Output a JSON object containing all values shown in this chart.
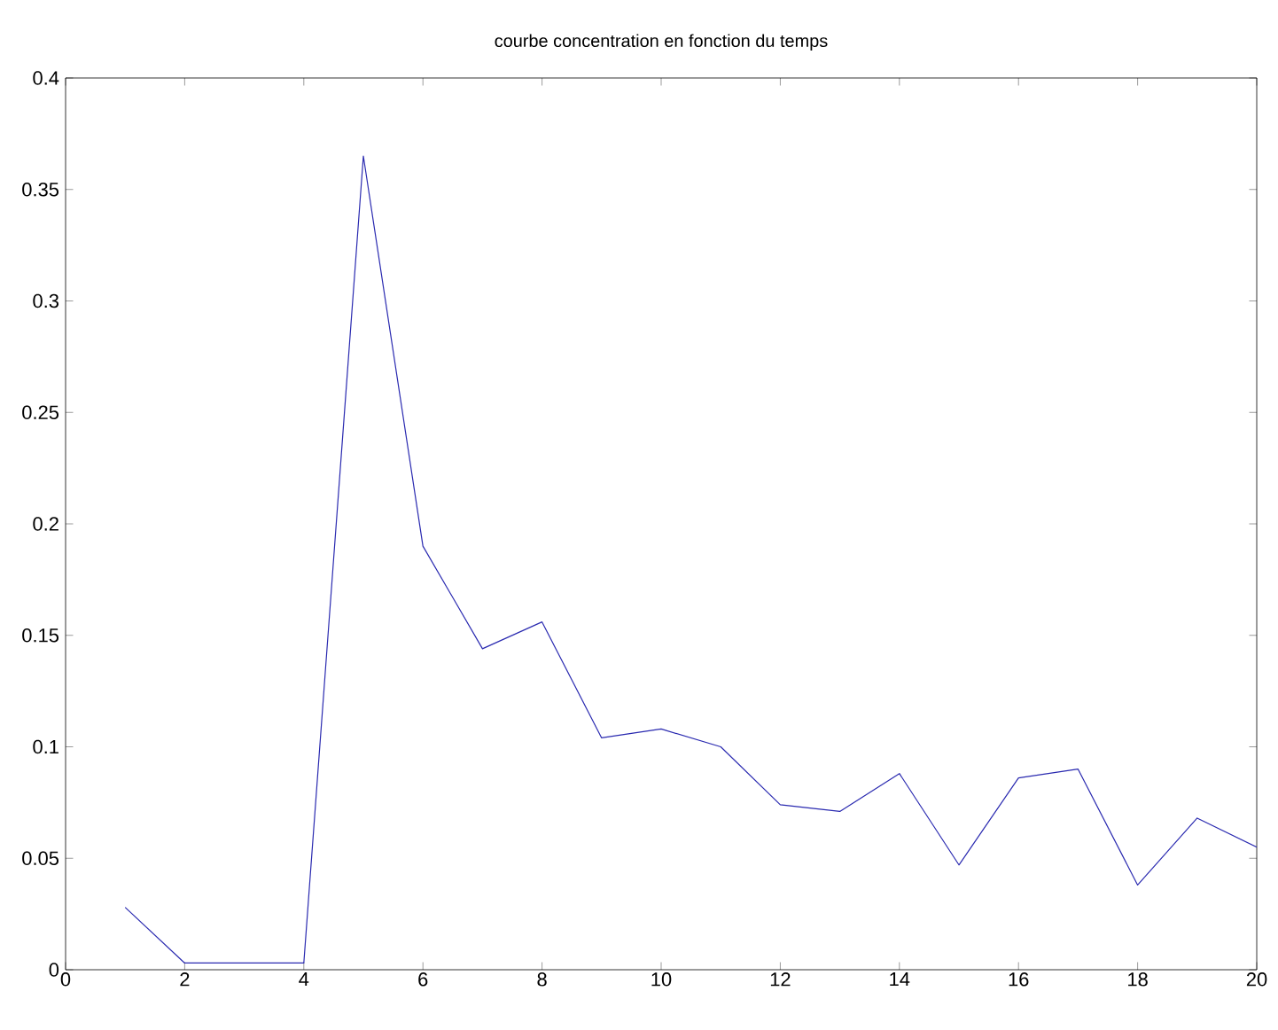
{
  "chart_data": {
    "type": "line",
    "title": "courbe concentration en fonction du temps",
    "x": [
      1,
      2,
      3,
      4,
      5,
      6,
      7,
      8,
      9,
      10,
      11,
      12,
      13,
      14,
      15,
      16,
      17,
      18,
      19,
      20
    ],
    "series": [
      {
        "color": "#2a2ab0",
        "values": [
          0.028,
          0.003,
          0.003,
          0.003,
          0.365,
          0.19,
          0.144,
          0.156,
          0.104,
          0.108,
          0.1,
          0.074,
          0.071,
          0.088,
          0.047,
          0.086,
          0.09,
          0.038,
          0.068,
          0.055
        ]
      }
    ],
    "xlim": [
      0,
      20
    ],
    "xticks": [
      0,
      2,
      4,
      6,
      8,
      10,
      12,
      14,
      16,
      18,
      20
    ],
    "ylim": [
      0,
      0.4
    ],
    "yticks": [
      0,
      0.05,
      0.1,
      0.15,
      0.2,
      0.25,
      0.3,
      0.35,
      0.4
    ],
    "grid": false,
    "marker": "none",
    "line_style": "solid"
  }
}
